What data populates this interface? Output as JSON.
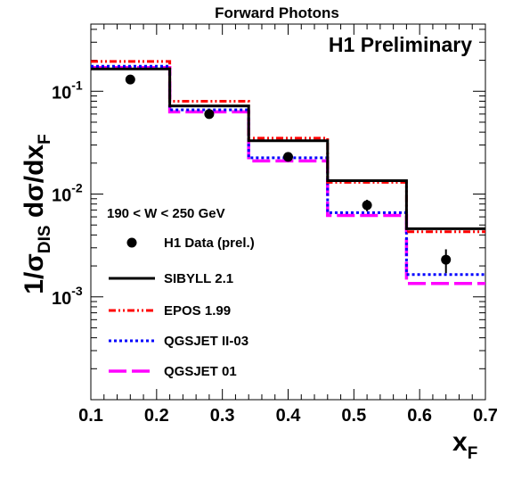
{
  "chart_data": {
    "type": "line",
    "title": "Forward Photons",
    "annotation": "H1 Preliminary",
    "kinematic_range": "190 < W < 250 GeV",
    "ylabel": "1/σ_DIS dσ/dx_F",
    "ylabel_parts": {
      "main": "1/σ",
      "sub1": "DIS",
      "mid": " dσ/dx",
      "sub2": "F"
    },
    "xlabel": "x_F",
    "xlabel_parts": {
      "main": "x",
      "sub": "F"
    },
    "xlim": [
      0.1,
      0.7
    ],
    "ylim": [
      0.0001,
      0.45
    ],
    "y_scale": "log",
    "x_ticks": [
      "0.1",
      "0.2",
      "0.3",
      "0.4",
      "0.5",
      "0.6",
      "0.7"
    ],
    "y_ticks": [
      {
        "value": 0.1,
        "base": "10",
        "exp": "-1"
      },
      {
        "value": 0.01,
        "base": "10",
        "exp": "-2"
      },
      {
        "value": 0.001,
        "base": "10",
        "exp": "-3"
      }
    ],
    "bin_edges": [
      0.1,
      0.22,
      0.34,
      0.46,
      0.58,
      0.7
    ],
    "data": {
      "name": "H1 Data (prel.)",
      "color": "#000000",
      "points": [
        {
          "x": 0.16,
          "y": 0.13,
          "err": 0.01
        },
        {
          "x": 0.28,
          "y": 0.06,
          "err": 0.004
        },
        {
          "x": 0.4,
          "y": 0.023,
          "err": 0.002
        },
        {
          "x": 0.52,
          "y": 0.0078,
          "err": 0.001
        },
        {
          "x": 0.64,
          "y": 0.0023,
          "err": 0.0006
        }
      ]
    },
    "series": [
      {
        "name": "SIBYLL 2.1",
        "color": "#000000",
        "style": "solid",
        "values": [
          0.165,
          0.072,
          0.033,
          0.0135,
          0.0046
        ]
      },
      {
        "name": "EPOS 1.99",
        "color": "#ff0000",
        "style": "dashdotdot",
        "values": [
          0.195,
          0.08,
          0.035,
          0.013,
          0.0043
        ]
      },
      {
        "name": "QGSJET II-03",
        "color": "#0000ff",
        "style": "dotted",
        "values": [
          0.175,
          0.066,
          0.0225,
          0.0066,
          0.00165
        ]
      },
      {
        "name": "QGSJET 01",
        "color": "#ff00ff",
        "style": "longdash",
        "values": [
          0.17,
          0.063,
          0.021,
          0.0062,
          0.00135
        ]
      }
    ]
  }
}
